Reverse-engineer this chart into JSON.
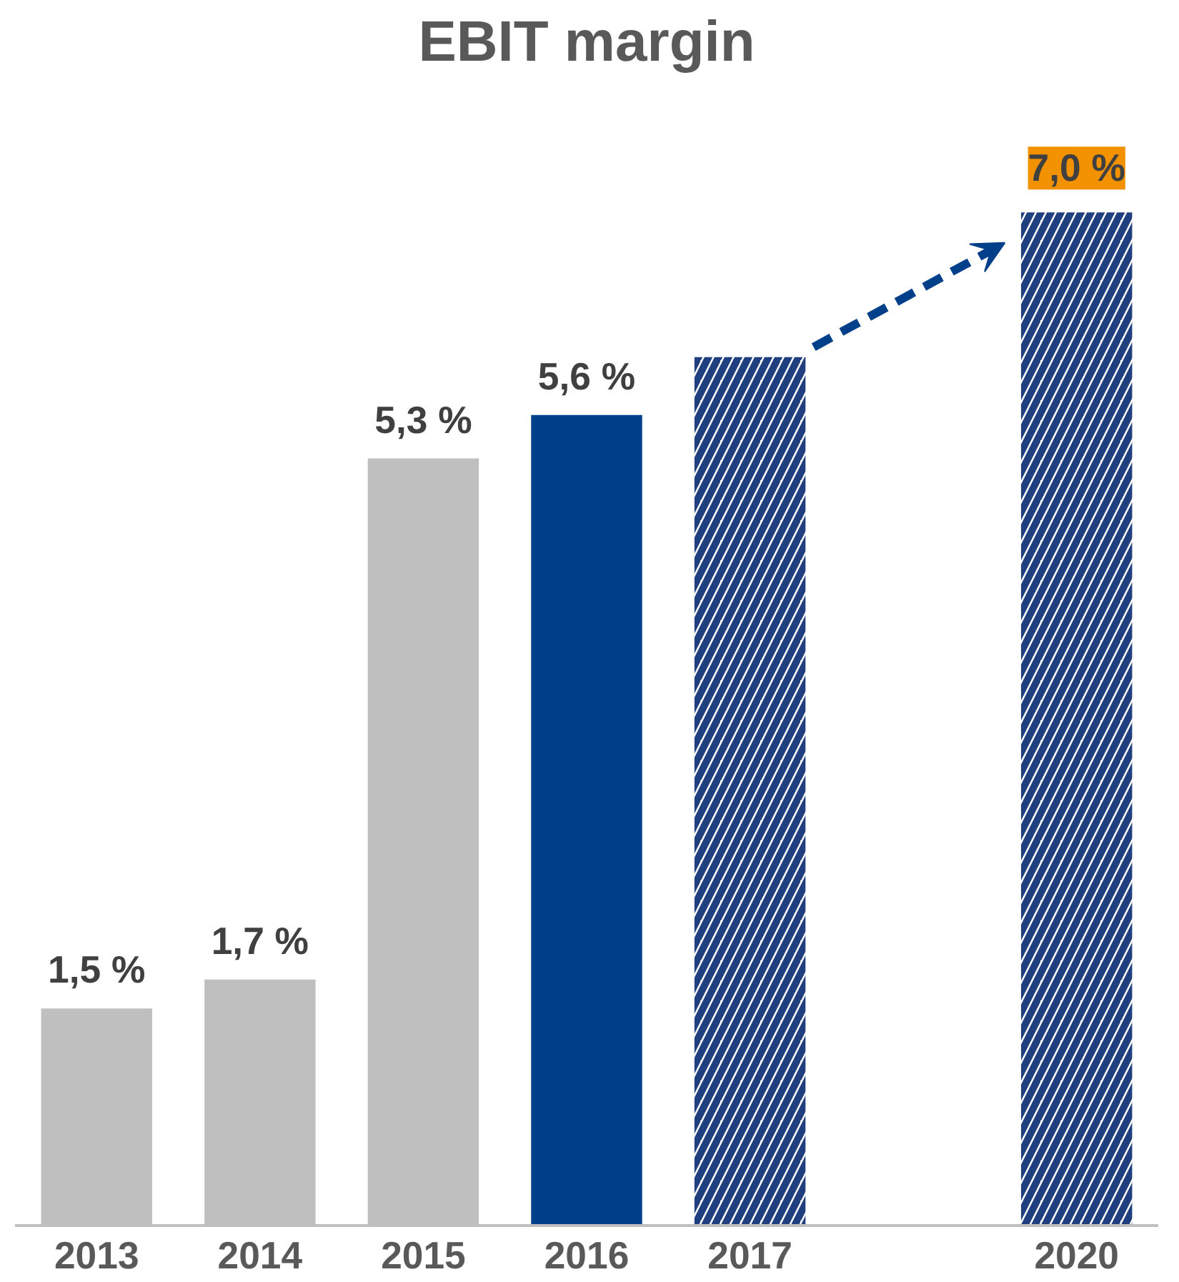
{
  "chart_data": {
    "type": "bar",
    "title": "EBIT margin",
    "categories": [
      "2013",
      "2014",
      "2015",
      "2016",
      "2017",
      null,
      "2020"
    ],
    "series": [
      {
        "colors": [
          "#bfbfbf",
          "#bfbfbf",
          "#bfbfbf",
          "#003f8a",
          null,
          null,
          null
        ],
        "values": [
          1.5,
          1.7,
          5.3,
          5.6,
          null,
          null,
          null
        ],
        "value_labels": [
          "1,5 %",
          "1,7 %",
          "5,3 %",
          "5,6 %",
          null,
          null,
          null
        ]
      },
      {
        "color": "#1f3f7f",
        "values": [
          null,
          null,
          null,
          null,
          6.0,
          null,
          7.0
        ],
        "value_labels": [
          null,
          null,
          null,
          null,
          null,
          null,
          "7,0 %"
        ]
      }
    ],
    "grid": false
  }
}
